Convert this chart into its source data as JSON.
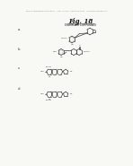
{
  "title": "Fig. 18",
  "subtitle": "EXEMPLARY COMPOUNDS",
  "header_text": "Patent Application Publication    Sep. 2, 2010   Sheet 18 of 44    US 2010/0222381 A1",
  "label_a": "a.",
  "label_b": "b.",
  "label_c": "c.",
  "label_d": "d.",
  "bg_color": "#f8f8f5",
  "line_color": "#3a3a3a",
  "text_color": "#3a3a3a",
  "title_color": "#111111"
}
